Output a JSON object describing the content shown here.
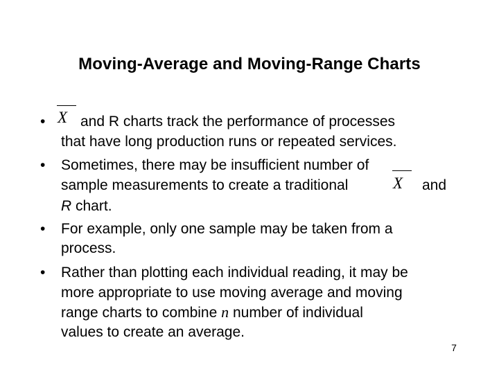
{
  "slide": {
    "title": "Moving-Average and Moving-Range Charts",
    "page_number": "7",
    "x_symbol": "X",
    "bullet_char": "•",
    "bullets": [
      {
        "line1_after_symbol": "and R charts track the performance of processes",
        "line2": "that have long production runs or repeated services."
      },
      {
        "line1": "Sometimes, there may be insufficient number of",
        "line2_before_symbol": "sample measurements to create a traditional",
        "line2_after_symbol": "and",
        "line3_italic": "R",
        "line3_rest": " chart."
      },
      {
        "line1": "For example, only one sample may be taken from a",
        "line2": "process."
      },
      {
        "line1": "Rather than plotting each individual reading, it may be",
        "line2": "more appropriate to use moving average and moving",
        "line3_before_var": "range charts to combine ",
        "line3_var": "n",
        "line3_after_var": " number of individual",
        "line4": "values to create an average."
      }
    ]
  }
}
